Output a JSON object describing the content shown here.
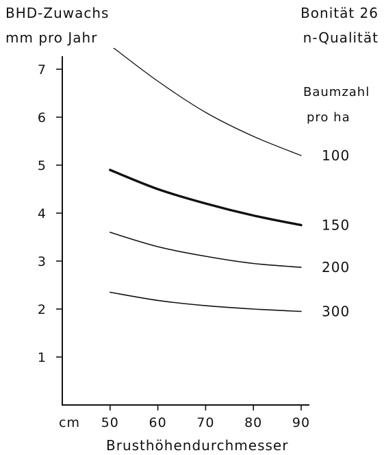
{
  "chart_data": {
    "type": "line",
    "title_left": [
      "BHD-Zuwachs",
      "mm pro Jahr"
    ],
    "title_right": [
      "Bonität 26",
      "n-Qualität"
    ],
    "legend_title": [
      "Baumzahl",
      "pro ha"
    ],
    "xlabel": "Brusthöhendurchmesser",
    "x_unit": "cm",
    "xlim": [
      40,
      90
    ],
    "ylim": [
      0,
      7.4
    ],
    "x_ticks": [
      "50",
      "60",
      "70",
      "80",
      "90"
    ],
    "y_ticks": [
      "1",
      "2",
      "3",
      "4",
      "5",
      "6",
      "7"
    ],
    "grid": false,
    "series": [
      {
        "name": "100",
        "x": [
          50,
          60,
          70,
          80,
          90
        ],
        "y": [
          7.5,
          6.75,
          6.1,
          5.6,
          5.2
        ],
        "line_weight": "thin"
      },
      {
        "name": "150",
        "x": [
          50,
          60,
          70,
          80,
          90
        ],
        "y": [
          4.9,
          4.5,
          4.2,
          3.95,
          3.75
        ],
        "line_weight": "bold"
      },
      {
        "name": "200",
        "x": [
          50,
          60,
          70,
          80,
          90
        ],
        "y": [
          3.6,
          3.3,
          3.1,
          2.95,
          2.87
        ],
        "line_weight": "normal"
      },
      {
        "name": "300",
        "x": [
          50,
          60,
          70,
          80,
          90
        ],
        "y": [
          2.35,
          2.18,
          2.07,
          2.0,
          1.95
        ],
        "line_weight": "normal"
      }
    ]
  }
}
